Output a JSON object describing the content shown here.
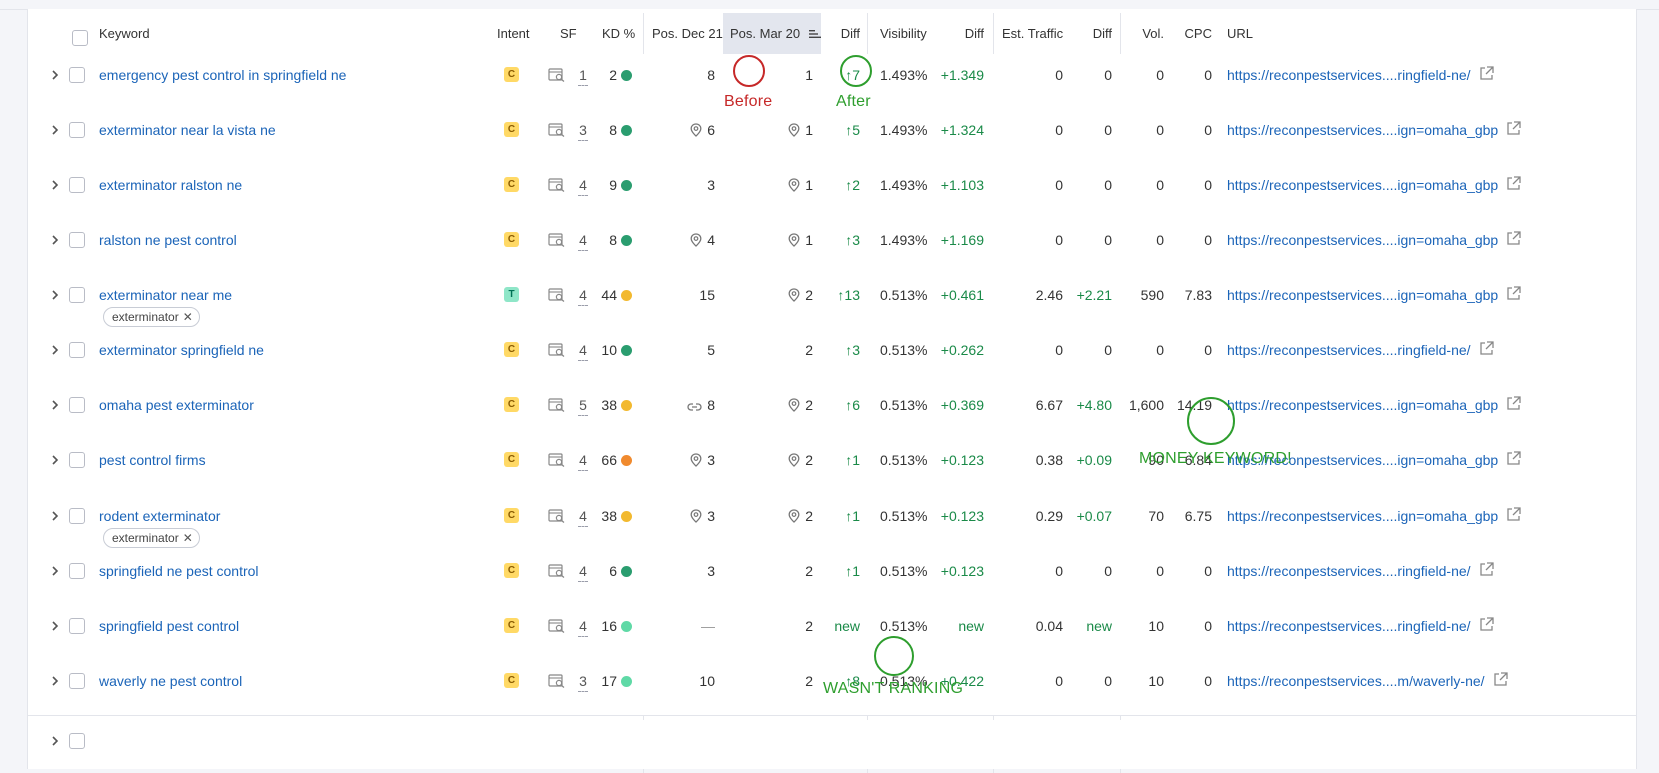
{
  "header": {
    "keyword": "Keyword",
    "intent": "Intent",
    "sf": "SF",
    "kd": "KD %",
    "pos_dec": "Pos. Dec 21",
    "pos_mar": "Pos. Mar 20",
    "diff1": "Diff",
    "visibility": "Visibility",
    "diff2": "Diff",
    "traffic": "Est. Traffic",
    "diff3": "Diff",
    "vol": "Vol.",
    "cpc": "CPC",
    "url": "URL"
  },
  "colors": {
    "link": "#1b64b8",
    "positive": "#1a8a48",
    "before_circle": "#c62828",
    "after_circle": "#2e9e2e",
    "intent_c": "#ffd966",
    "intent_t": "#8fe6c8"
  },
  "rows": [
    {
      "keyword": "emergency pest control in springfield ne",
      "intent": "C",
      "sf": "1",
      "kd": "2",
      "kd_color": "#2a9d6f",
      "pos_dec": "8",
      "pos_dec_icon": "",
      "pos_mar": "1",
      "pos_mar_icon": "",
      "diff": "↑7",
      "visibility": "1.493%",
      "vis_diff": "+1.349",
      "traffic": "0",
      "traffic_diff": "0",
      "vol": "0",
      "cpc": "0",
      "url": "https://reconpestservices....ringfield-ne/",
      "tag": ""
    },
    {
      "keyword": "exterminator near la vista ne",
      "intent": "C",
      "sf": "3",
      "kd": "8",
      "kd_color": "#2a9d6f",
      "pos_dec": "6",
      "pos_dec_icon": "pin-icon",
      "pos_mar": "1",
      "pos_mar_icon": "pin-icon",
      "diff": "↑5",
      "visibility": "1.493%",
      "vis_diff": "+1.324",
      "traffic": "0",
      "traffic_diff": "0",
      "vol": "0",
      "cpc": "0",
      "url": "https://reconpestservices....ign=omaha_gbp",
      "tag": ""
    },
    {
      "keyword": "exterminator ralston ne",
      "intent": "C",
      "sf": "4",
      "kd": "9",
      "kd_color": "#2a9d6f",
      "pos_dec": "3",
      "pos_dec_icon": "",
      "pos_mar": "1",
      "pos_mar_icon": "pin-icon",
      "diff": "↑2",
      "visibility": "1.493%",
      "vis_diff": "+1.103",
      "traffic": "0",
      "traffic_diff": "0",
      "vol": "0",
      "cpc": "0",
      "url": "https://reconpestservices....ign=omaha_gbp",
      "tag": ""
    },
    {
      "keyword": "ralston ne pest control",
      "intent": "C",
      "sf": "4",
      "kd": "8",
      "kd_color": "#2a9d6f",
      "pos_dec": "4",
      "pos_dec_icon": "pin-icon",
      "pos_mar": "1",
      "pos_mar_icon": "pin-icon",
      "diff": "↑3",
      "visibility": "1.493%",
      "vis_diff": "+1.169",
      "traffic": "0",
      "traffic_diff": "0",
      "vol": "0",
      "cpc": "0",
      "url": "https://reconpestservices....ign=omaha_gbp",
      "tag": ""
    },
    {
      "keyword": "exterminator near me",
      "intent": "T",
      "sf": "4",
      "kd": "44",
      "kd_color": "#f2b92f",
      "pos_dec": "15",
      "pos_dec_icon": "",
      "pos_mar": "2",
      "pos_mar_icon": "pin-icon",
      "diff": "↑13",
      "visibility": "0.513%",
      "vis_diff": "+0.461",
      "traffic": "2.46",
      "traffic_diff": "+2.21",
      "vol": "590",
      "cpc": "7.83",
      "url": "https://reconpestservices....ign=omaha_gbp",
      "tag": "exterminator"
    },
    {
      "keyword": "exterminator springfield ne",
      "intent": "C",
      "sf": "4",
      "kd": "10",
      "kd_color": "#2a9d6f",
      "pos_dec": "5",
      "pos_dec_icon": "",
      "pos_mar": "2",
      "pos_mar_icon": "",
      "diff": "↑3",
      "visibility": "0.513%",
      "vis_diff": "+0.262",
      "traffic": "0",
      "traffic_diff": "0",
      "vol": "0",
      "cpc": "0",
      "url": "https://reconpestservices....ringfield-ne/",
      "tag": ""
    },
    {
      "keyword": "omaha pest exterminator",
      "intent": "C",
      "sf": "5",
      "kd": "38",
      "kd_color": "#f2b92f",
      "pos_dec": "8",
      "pos_dec_icon": "link-icon",
      "pos_mar": "2",
      "pos_mar_icon": "pin-icon",
      "diff": "↑6",
      "visibility": "0.513%",
      "vis_diff": "+0.369",
      "traffic": "6.67",
      "traffic_diff": "+4.80",
      "vol": "1,600",
      "cpc": "14.19",
      "url": "https://reconpestservices....ign=omaha_gbp",
      "tag": ""
    },
    {
      "keyword": "pest control firms",
      "intent": "C",
      "sf": "4",
      "kd": "66",
      "kd_color": "#f08a2e",
      "pos_dec": "3",
      "pos_dec_icon": "pin-icon",
      "pos_mar": "2",
      "pos_mar_icon": "pin-icon",
      "diff": "↑1",
      "visibility": "0.513%",
      "vis_diff": "+0.123",
      "traffic": "0.38",
      "traffic_diff": "+0.09",
      "vol": "90",
      "cpc": "6.84",
      "url": "https://reconpestservices....ign=omaha_gbp",
      "tag": ""
    },
    {
      "keyword": "rodent exterminator",
      "intent": "C",
      "sf": "4",
      "kd": "38",
      "kd_color": "#f2b92f",
      "pos_dec": "3",
      "pos_dec_icon": "pin-icon",
      "pos_mar": "2",
      "pos_mar_icon": "pin-icon",
      "diff": "↑1",
      "visibility": "0.513%",
      "vis_diff": "+0.123",
      "traffic": "0.29",
      "traffic_diff": "+0.07",
      "vol": "70",
      "cpc": "6.75",
      "url": "https://reconpestservices....ign=omaha_gbp",
      "tag": "exterminator"
    },
    {
      "keyword": "springfield ne pest control",
      "intent": "C",
      "sf": "4",
      "kd": "6",
      "kd_color": "#2a9d6f",
      "pos_dec": "3",
      "pos_dec_icon": "",
      "pos_mar": "2",
      "pos_mar_icon": "",
      "diff": "↑1",
      "visibility": "0.513%",
      "vis_diff": "+0.123",
      "traffic": "0",
      "traffic_diff": "0",
      "vol": "0",
      "cpc": "0",
      "url": "https://reconpestservices....ringfield-ne/",
      "tag": ""
    },
    {
      "keyword": "springfield pest control",
      "intent": "C",
      "sf": "4",
      "kd": "16",
      "kd_color": "#5fd9a6",
      "pos_dec": "—",
      "pos_dec_icon": "",
      "pos_mar": "2",
      "pos_mar_icon": "",
      "diff": "new",
      "visibility": "0.513%",
      "vis_diff": "new",
      "traffic": "0.04",
      "traffic_diff": "new",
      "vol": "10",
      "cpc": "0",
      "url": "https://reconpestservices....ringfield-ne/",
      "tag": ""
    },
    {
      "keyword": "waverly ne pest control",
      "intent": "C",
      "sf": "3",
      "kd": "17",
      "kd_color": "#5fd9a6",
      "pos_dec": "10",
      "pos_dec_icon": "",
      "pos_mar": "2",
      "pos_mar_icon": "",
      "diff": "↑8",
      "visibility": "0.513%",
      "vis_diff": "+0.422",
      "traffic": "0",
      "traffic_diff": "0",
      "vol": "10",
      "cpc": "0",
      "url": "https://reconpestservices....m/waverly-ne/",
      "tag": ""
    }
  ],
  "annotations": {
    "before": "Before",
    "after": "After",
    "money": "MONEY KEYWORD!",
    "wasnt": "WASN'T RANKING"
  }
}
